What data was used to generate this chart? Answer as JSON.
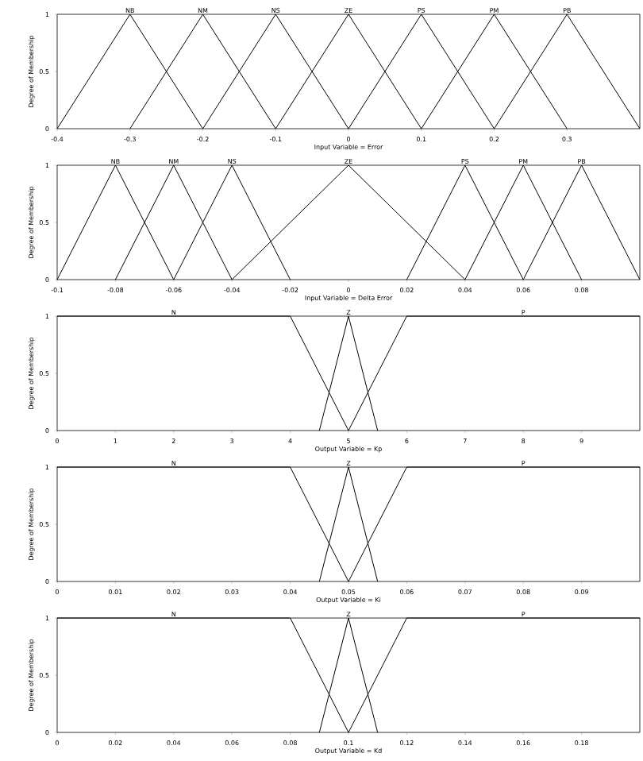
{
  "chart_data": [
    {
      "type": "line",
      "xlabel": "Input Variable = Error",
      "ylabel": "Degree of Membership",
      "marker": "none",
      "xlim": [
        -0.4,
        0.4
      ],
      "xticks": [
        -0.4,
        -0.3,
        -0.2,
        -0.1,
        0,
        0.1,
        0.2,
        0.3
      ],
      "ylim": [
        0,
        1
      ],
      "yticks": [
        0,
        0.5,
        1
      ],
      "series": [
        {
          "name": "NB",
          "color": "#000000",
          "x": [
            -0.4,
            -0.3,
            -0.2
          ],
          "values": [
            0,
            1,
            0
          ]
        },
        {
          "name": "NM",
          "color": "#000000",
          "x": [
            -0.3,
            -0.2,
            -0.1
          ],
          "values": [
            0,
            1,
            0
          ]
        },
        {
          "name": "NS",
          "color": "#000000",
          "x": [
            -0.2,
            -0.1,
            0
          ],
          "values": [
            0,
            1,
            0
          ]
        },
        {
          "name": "ZE",
          "color": "#000000",
          "x": [
            -0.1,
            0,
            0.1
          ],
          "values": [
            0,
            1,
            0
          ]
        },
        {
          "name": "PS",
          "color": "#000000",
          "x": [
            0,
            0.1,
            0.2
          ],
          "values": [
            0,
            1,
            0
          ]
        },
        {
          "name": "PM",
          "color": "#000000",
          "x": [
            0.1,
            0.2,
            0.3
          ],
          "values": [
            0,
            1,
            0
          ]
        },
        {
          "name": "PB",
          "color": "#000000",
          "x": [
            0.2,
            0.3,
            0.4
          ],
          "values": [
            0,
            1,
            0
          ]
        }
      ]
    },
    {
      "type": "line",
      "xlabel": "Input Variable = Delta Error",
      "ylabel": "Degree of Membership",
      "marker": "none",
      "xlim": [
        -0.1,
        0.1
      ],
      "xticks": [
        -0.1,
        -0.08,
        -0.06,
        -0.04,
        -0.02,
        0,
        0.02,
        0.04,
        0.06,
        0.08
      ],
      "ylim": [
        0,
        1
      ],
      "yticks": [
        0,
        0.5,
        1
      ],
      "series": [
        {
          "name": "NB",
          "color": "#000000",
          "x": [
            -0.1,
            -0.08,
            -0.06
          ],
          "values": [
            0,
            1,
            0
          ]
        },
        {
          "name": "NM",
          "color": "#000000",
          "x": [
            -0.08,
            -0.06,
            -0.04
          ],
          "values": [
            0,
            1,
            0
          ]
        },
        {
          "name": "NS",
          "color": "#000000",
          "x": [
            -0.06,
            -0.04,
            -0.02
          ],
          "values": [
            0,
            1,
            0
          ]
        },
        {
          "name": "ZE",
          "color": "#000000",
          "x": [
            -0.04,
            0,
            0.04
          ],
          "values": [
            0,
            1,
            0
          ]
        },
        {
          "name": "PS",
          "color": "#000000",
          "x": [
            0.02,
            0.04,
            0.06
          ],
          "values": [
            0,
            1,
            0
          ]
        },
        {
          "name": "PM",
          "color": "#000000",
          "x": [
            0.04,
            0.06,
            0.08
          ],
          "values": [
            0,
            1,
            0
          ]
        },
        {
          "name": "PB",
          "color": "#000000",
          "x": [
            0.06,
            0.08,
            0.1
          ],
          "values": [
            0,
            1,
            0
          ]
        }
      ]
    },
    {
      "type": "line",
      "xlabel": "Output Variable = Kp",
      "ylabel": "Degree of Membership",
      "marker": "none",
      "xlim": [
        0,
        10
      ],
      "xticks": [
        0,
        1,
        2,
        3,
        4,
        5,
        6,
        7,
        8,
        9
      ],
      "ylim": [
        0,
        1
      ],
      "yticks": [
        0,
        0.5,
        1
      ],
      "series": [
        {
          "name": "N",
          "color": "#000000",
          "x": [
            0,
            4,
            5
          ],
          "values": [
            1,
            1,
            0
          ]
        },
        {
          "name": "Z",
          "color": "#000000",
          "x": [
            4.5,
            5,
            5.5
          ],
          "values": [
            0,
            1,
            0
          ]
        },
        {
          "name": "P",
          "color": "#000000",
          "x": [
            5,
            6,
            10
          ],
          "values": [
            0,
            1,
            1
          ]
        }
      ]
    },
    {
      "type": "line",
      "xlabel": "Output Variable = Ki",
      "ylabel": "Degree of Membership",
      "marker": "none",
      "xlim": [
        0,
        0.1
      ],
      "xticks": [
        0,
        0.01,
        0.02,
        0.03,
        0.04,
        0.05,
        0.06,
        0.07,
        0.08,
        0.09
      ],
      "ylim": [
        0,
        1
      ],
      "yticks": [
        0,
        0.5,
        1
      ],
      "series": [
        {
          "name": "N",
          "color": "#000000",
          "x": [
            0,
            0.04,
            0.05
          ],
          "values": [
            1,
            1,
            0
          ]
        },
        {
          "name": "Z",
          "color": "#000000",
          "x": [
            0.045,
            0.05,
            0.055
          ],
          "values": [
            0,
            1,
            0
          ]
        },
        {
          "name": "P",
          "color": "#000000",
          "x": [
            0.05,
            0.06,
            0.1
          ],
          "values": [
            0,
            1,
            1
          ]
        }
      ]
    },
    {
      "type": "line",
      "xlabel": "Output Variable = Kd",
      "ylabel": "Degree of Membership",
      "marker": "none",
      "xlim": [
        0,
        0.2
      ],
      "xticks": [
        0,
        0.02,
        0.04,
        0.06,
        0.08,
        0.1,
        0.12,
        0.14,
        0.16,
        0.18
      ],
      "ylim": [
        0,
        1
      ],
      "yticks": [
        0,
        0.5,
        1
      ],
      "series": [
        {
          "name": "N",
          "color": "#000000",
          "x": [
            0,
            0.08,
            0.1
          ],
          "values": [
            1,
            1,
            0
          ]
        },
        {
          "name": "Z",
          "color": "#000000",
          "x": [
            0.09,
            0.1,
            0.11
          ],
          "values": [
            0,
            1,
            0
          ]
        },
        {
          "name": "P",
          "color": "#000000",
          "x": [
            0.1,
            0.12,
            0.2
          ],
          "values": [
            0,
            1,
            1
          ]
        }
      ]
    }
  ]
}
